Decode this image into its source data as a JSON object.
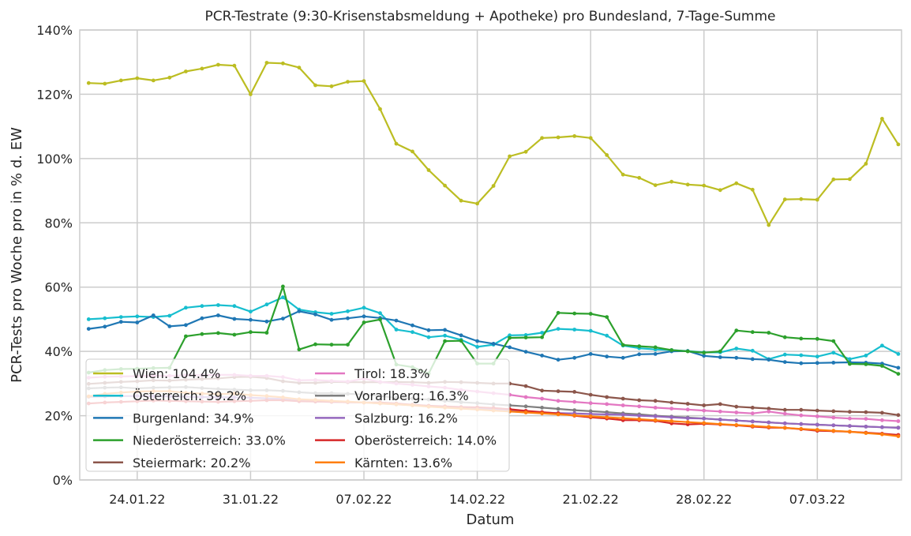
{
  "chart_data": {
    "type": "line",
    "title": "PCR-Testrate (9:30-Krisenstabsmeldung + Apotheke) pro Bundesland, 7-Tage-Summe",
    "xlabel": "Datum",
    "ylabel": "PCR-Tests pro Woche pro in % d. EW",
    "x_start": "21.01.22",
    "x_end": "12.03.22",
    "x_ticks": [
      "24.01.22",
      "31.01.22",
      "07.02.22",
      "14.02.22",
      "21.02.22",
      "28.02.22",
      "07.03.22"
    ],
    "y_ticks": [
      "0%",
      "20%",
      "40%",
      "60%",
      "80%",
      "100%",
      "120%",
      "140%"
    ],
    "ylim": [
      0,
      140
    ],
    "grid": true,
    "legend_position": "lower-left",
    "series": [
      {
        "name": "Wien: 104.4%",
        "color": "#bcbd22",
        "values": [
          123.5,
          123.3,
          124.3,
          125.0,
          124.3,
          125.2,
          127.1,
          128.0,
          129.2,
          128.9,
          120.0,
          129.8,
          129.6,
          128.3,
          122.8,
          122.5,
          123.9,
          124.1,
          115.4,
          104.6,
          102.2,
          96.4,
          91.6,
          86.9,
          86.0,
          91.5,
          100.7,
          102.1,
          106.4,
          106.6,
          107.0,
          106.4,
          101.1,
          95.0,
          94.0,
          91.7,
          92.8,
          91.9,
          91.6,
          90.2,
          92.3,
          90.3,
          79.3,
          87.3,
          87.4,
          87.2,
          93.5,
          93.6,
          98.4,
          112.4,
          104.4
        ]
      },
      {
        "name": "Österreich: 39.2%",
        "color": "#17becf",
        "values": [
          50.0,
          50.3,
          50.7,
          50.9,
          50.7,
          51.1,
          53.6,
          54.1,
          54.4,
          54.1,
          52.4,
          54.6,
          56.8,
          53.0,
          52.2,
          51.7,
          52.5,
          53.6,
          51.9,
          46.8,
          46.0,
          44.4,
          44.9,
          43.6,
          41.4,
          42.1,
          45.0,
          45.1,
          45.8,
          47.0,
          46.8,
          46.4,
          44.9,
          41.8,
          41.0,
          40.6,
          40.4,
          40.1,
          39.7,
          39.7,
          40.9,
          40.2,
          37.6,
          39.0,
          38.8,
          38.4,
          39.6,
          37.6,
          38.7,
          41.8,
          39.2
        ]
      },
      {
        "name": "Burgenland: 34.9%",
        "color": "#1f77b4",
        "values": [
          47.0,
          47.7,
          49.2,
          49.0,
          51.2,
          47.8,
          48.2,
          50.3,
          51.2,
          50.1,
          49.8,
          49.3,
          50.2,
          52.5,
          51.5,
          49.8,
          50.3,
          50.9,
          50.4,
          49.6,
          48.1,
          46.6,
          46.7,
          45.0,
          43.2,
          42.4,
          41.3,
          39.9,
          38.7,
          37.4,
          38.0,
          39.2,
          38.4,
          38.0,
          39.1,
          39.2,
          40.0,
          40.1,
          38.6,
          38.2,
          38.0,
          37.6,
          37.4,
          36.7,
          36.3,
          36.4,
          36.5,
          36.6,
          36.5,
          36.2,
          34.9
        ]
      },
      {
        "name": "Niederösterreich: 33.0%",
        "color": "#2ca02c",
        "values": [
          33.4,
          34.2,
          34.5,
          34.6,
          34.8,
          34.9,
          44.7,
          45.4,
          45.7,
          45.2,
          46.0,
          45.8,
          60.2,
          40.6,
          42.2,
          42.1,
          42.1,
          49.0,
          49.9,
          35.9,
          35.1,
          33.1,
          43.2,
          43.3,
          36.2,
          36.2,
          44.2,
          44.3,
          44.4,
          52.0,
          51.8,
          51.7,
          50.7,
          42.0,
          41.6,
          41.3,
          40.4,
          40.0,
          39.6,
          40.0,
          46.5,
          46.0,
          45.8,
          44.4,
          44.0,
          43.9,
          43.2,
          36.1,
          36.0,
          35.5,
          33.0
        ]
      },
      {
        "name": "Steiermark: 20.2%",
        "color": "#8c564b",
        "values": [
          29.9,
          30.2,
          30.5,
          30.7,
          31.0,
          30.9,
          31.2,
          31.4,
          31.6,
          32.0,
          32.1,
          31.7,
          30.7,
          30.2,
          30.2,
          30.5,
          30.4,
          30.4,
          30.4,
          30.5,
          30.4,
          30.2,
          30.5,
          30.4,
          30.2,
          30.0,
          30.0,
          29.2,
          27.8,
          27.6,
          27.4,
          26.5,
          25.8,
          25.3,
          24.8,
          24.6,
          24.1,
          23.7,
          23.2,
          23.6,
          22.8,
          22.5,
          22.2,
          21.8,
          21.8,
          21.6,
          21.4,
          21.2,
          21.1,
          20.9,
          20.2
        ]
      },
      {
        "name": "Tirol: 18.3%",
        "color": "#e377c2",
        "values": [
          31.8,
          32.1,
          32.2,
          32.3,
          32.4,
          32.4,
          32.6,
          32.6,
          32.7,
          32.7,
          32.4,
          32.4,
          32.0,
          31.0,
          31.1,
          30.8,
          30.6,
          31.5,
          30.5,
          30.0,
          29.6,
          29.1,
          28.7,
          28.0,
          27.5,
          27.0,
          26.5,
          25.8,
          25.3,
          24.6,
          24.3,
          23.9,
          23.6,
          23.2,
          22.9,
          22.5,
          22.2,
          21.9,
          21.6,
          21.3,
          21.0,
          20.7,
          21.3,
          20.6,
          20.1,
          19.8,
          19.4,
          19.1,
          19.0,
          18.6,
          18.3
        ]
      },
      {
        "name": "Vorarlberg: 16.3%",
        "color": "#7f7f7f",
        "values": [
          28.5,
          28.7,
          28.8,
          28.5,
          28.7,
          28.8,
          28.9,
          28.6,
          28.3,
          28.1,
          27.9,
          27.9,
          27.7,
          27.3,
          27.0,
          27.0,
          26.8,
          26.6,
          26.1,
          25.6,
          25.3,
          25.0,
          24.6,
          24.2,
          23.9,
          23.5,
          23.2,
          22.9,
          22.5,
          22.1,
          21.7,
          21.4,
          21.1,
          20.7,
          20.4,
          20.0,
          19.7,
          19.4,
          19.1,
          18.8,
          18.5,
          18.2,
          17.9,
          17.6,
          17.4,
          17.2,
          17.0,
          16.8,
          16.6,
          16.4,
          16.3
        ]
      },
      {
        "name": "Salzburg: 16.2%",
        "color": "#9467bd",
        "values": [
          25.9,
          26.0,
          26.1,
          26.1,
          26.0,
          26.0,
          25.9,
          25.8,
          25.7,
          25.7,
          25.6,
          25.4,
          25.2,
          24.7,
          24.4,
          24.3,
          24.2,
          24.1,
          23.8,
          23.5,
          23.3,
          23.0,
          22.8,
          22.5,
          22.3,
          22.1,
          21.7,
          21.4,
          21.0,
          20.8,
          20.7,
          20.5,
          20.4,
          20.3,
          20.0,
          19.8,
          19.5,
          19.2,
          19.1,
          18.8,
          18.5,
          18.2,
          17.9,
          17.6,
          17.4,
          17.2,
          17.0,
          16.8,
          16.6,
          16.4,
          16.2
        ]
      },
      {
        "name": "Oberösterreich: 14.0%",
        "color": "#d62728",
        "values": [
          23.8,
          24.1,
          24.3,
          24.5,
          24.7,
          24.6,
          24.5,
          24.4,
          24.3,
          24.5,
          24.6,
          24.8,
          24.8,
          24.5,
          24.4,
          24.3,
          24.2,
          24.1,
          24.1,
          23.8,
          23.4,
          23.1,
          22.9,
          22.7,
          22.6,
          22.4,
          22.0,
          21.5,
          21.1,
          20.7,
          20.0,
          19.5,
          19.1,
          18.6,
          18.6,
          18.4,
          17.6,
          17.3,
          17.5,
          17.3,
          17.0,
          16.6,
          16.3,
          16.2,
          15.8,
          15.3,
          15.2,
          15.0,
          14.7,
          14.4,
          14.0
        ]
      },
      {
        "name": "Kärnten: 13.6%",
        "color": "#ff7f0e",
        "values": [
          26.0,
          26.8,
          27.2,
          27.5,
          27.6,
          27.6,
          27.1,
          26.9,
          26.7,
          26.9,
          26.4,
          26.1,
          25.7,
          25.1,
          24.9,
          24.6,
          24.4,
          24.1,
          23.8,
          23.5,
          23.2,
          22.8,
          22.5,
          22.2,
          21.9,
          21.6,
          21.3,
          21.0,
          20.7,
          20.4,
          20.1,
          19.8,
          19.5,
          19.2,
          18.9,
          18.6,
          18.3,
          18.0,
          17.7,
          17.4,
          17.1,
          16.8,
          16.5,
          16.2,
          15.9,
          15.6,
          15.3,
          15.0,
          14.6,
          14.2,
          13.6
        ]
      }
    ]
  }
}
